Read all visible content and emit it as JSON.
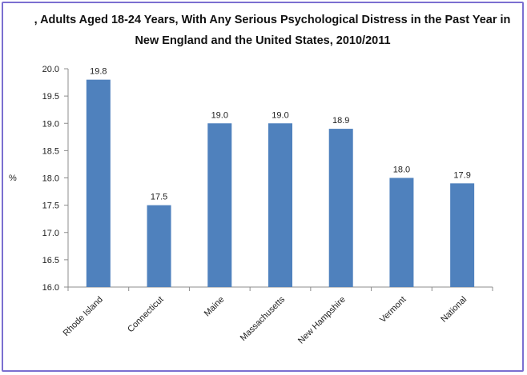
{
  "chart_data": {
    "type": "bar",
    "title_line1": ", Adults Aged 18-24 Years, With Any Serious Psychological Distress in the Past Year in",
    "title_line2": "New England and the United States, 2010/2011",
    "xlabel": "",
    "ylabel": "%",
    "categories": [
      "Rhode Island",
      "Connecticut",
      "Maine",
      "Massachusetts",
      "New Hampshire",
      "Vermont",
      "National"
    ],
    "values": [
      19.8,
      17.5,
      19.0,
      19.0,
      18.9,
      18.0,
      17.9
    ],
    "data_labels": [
      "19.8",
      "17.5",
      "19.0",
      "19.0",
      "18.9",
      "18.0",
      "17.9"
    ],
    "ylim": [
      16.0,
      20.0
    ],
    "yticks": [
      "16.0",
      "16.5",
      "17.0",
      "17.5",
      "18.0",
      "18.5",
      "19.0",
      "19.5",
      "20.0"
    ],
    "grid": false,
    "legend": "none",
    "bar_color": "#4f81bd"
  },
  "frame_border_color": "#7b6fd0"
}
